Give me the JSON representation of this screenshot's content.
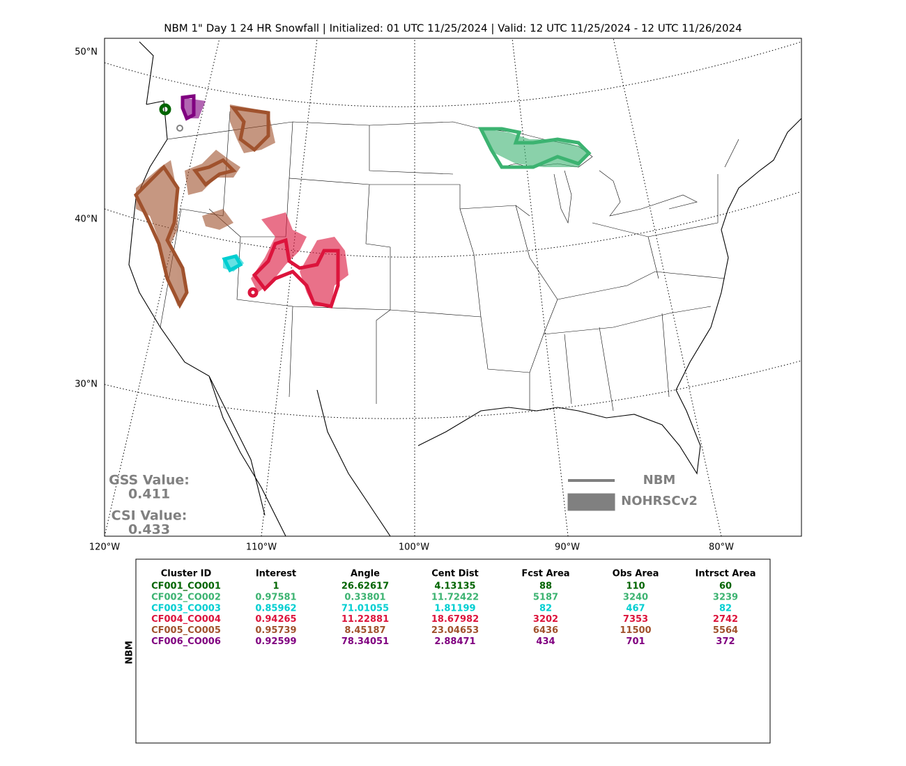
{
  "header": {
    "title": "NBM 1\" Day 1 24 HR Snowfall | Initialized: 01 UTC 11/25/2024 | Valid: 12 UTC 11/25/2024 - 12 UTC 11/26/2024"
  },
  "map": {
    "lat_labels": [
      "50°N",
      "40°N",
      "30°N"
    ],
    "lon_labels": [
      "120°W",
      "110°W",
      "100°W",
      "90°W",
      "80°W"
    ]
  },
  "scores": {
    "gss_label": "GSS Value:",
    "gss": 0.411,
    "csi_label": "CSI Value:",
    "csi": 0.433
  },
  "legend": {
    "forecast": "NBM",
    "observed": "NOHRSCv2",
    "color": "#808080"
  },
  "table": {
    "side_label": "NBM",
    "columns": [
      "Cluster ID",
      "Interest",
      "Angle",
      "Cent Dist",
      "Fcst Area",
      "Obs Area",
      "Intrsct Area"
    ],
    "row_colors": [
      "#006400",
      "#3cb371",
      "#00ced1",
      "#dc143c",
      "#a0522d",
      "#800080"
    ],
    "rows": [
      [
        "CF001_CO001",
        1,
        26.62617,
        4.13135,
        88,
        110,
        60
      ],
      [
        "CF002_CO002",
        0.97581,
        0.33801,
        11.72422,
        5187,
        3240,
        3239
      ],
      [
        "CF003_CO003",
        0.85962,
        71.01055,
        1.81199,
        82,
        467,
        82
      ],
      [
        "CF004_CO004",
        0.94265,
        11.22881,
        18.67982,
        3202,
        7353,
        2742
      ],
      [
        "CF005_CO005",
        0.95739,
        8.45187,
        23.04653,
        6436,
        11500,
        5564
      ],
      [
        "CF006_CO006",
        0.92599,
        78.34051,
        2.88471,
        434,
        701,
        372
      ]
    ]
  }
}
